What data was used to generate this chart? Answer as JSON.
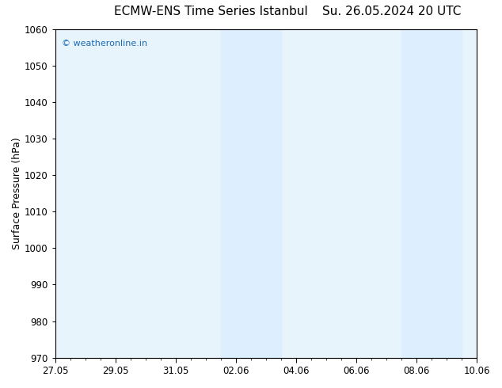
{
  "title_left": "ECMW-ENS Time Series Istanbul",
  "title_right": "Su. 26.05.2024 20 UTC",
  "ylabel": "Surface Pressure (hPa)",
  "ylim": [
    970,
    1060
  ],
  "yticks": [
    970,
    980,
    990,
    1000,
    1010,
    1020,
    1030,
    1040,
    1050,
    1060
  ],
  "xtick_labels": [
    "27.05",
    "29.05",
    "31.05",
    "02.06",
    "04.06",
    "06.06",
    "08.06",
    "10.06"
  ],
  "xtick_positions_days_from_start": [
    0,
    2,
    4,
    6,
    8,
    10,
    12,
    14
  ],
  "total_days": 14,
  "shaded_bands": [
    {
      "start_days": 5.5,
      "end_days": 7.5
    },
    {
      "start_days": 11.5,
      "end_days": 13.5
    }
  ],
  "band_color": "#ddeeff",
  "background_color": "#ffffff",
  "plot_bg_color": "#e8f4fc",
  "watermark_text": "© weatheronline.in",
  "watermark_color": "#1a6ab5",
  "title_color": "#000000",
  "axis_color": "#000000",
  "title_fontsize": 11,
  "tick_fontsize": 8.5,
  "ylabel_fontsize": 9
}
